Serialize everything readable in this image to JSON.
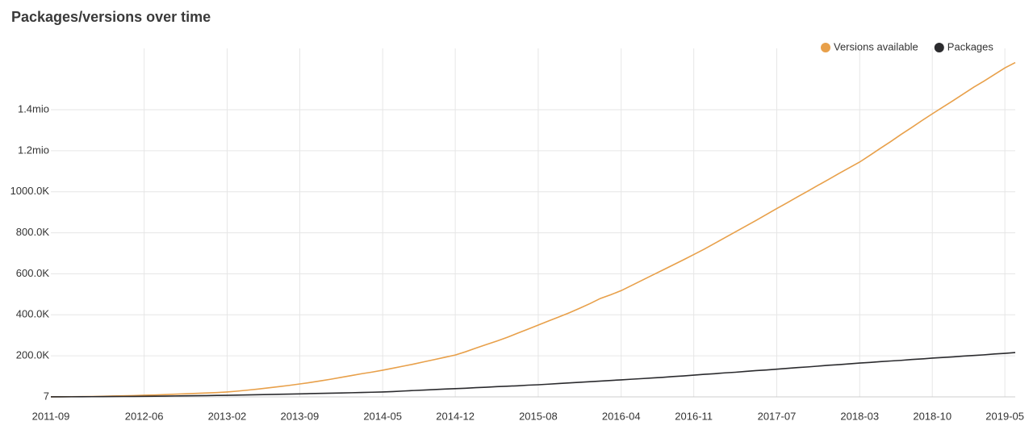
{
  "chart_data": {
    "type": "line",
    "title": "Packages/versions over time",
    "categories": [
      "2011-09",
      null,
      null,
      null,
      null,
      null,
      null,
      null,
      null,
      "2012-06",
      null,
      null,
      null,
      null,
      null,
      null,
      null,
      "2013-02",
      null,
      null,
      null,
      null,
      null,
      null,
      "2013-09",
      null,
      null,
      null,
      null,
      null,
      null,
      null,
      "2014-05",
      null,
      null,
      null,
      null,
      null,
      null,
      "2014-12",
      null,
      null,
      null,
      null,
      null,
      null,
      null,
      "2015-08",
      null,
      null,
      null,
      null,
      null,
      null,
      null,
      "2016-04",
      null,
      null,
      null,
      null,
      null,
      null,
      "2016-11",
      null,
      null,
      null,
      null,
      null,
      null,
      null,
      "2017-07",
      null,
      null,
      null,
      null,
      null,
      null,
      null,
      "2018-03",
      null,
      null,
      null,
      null,
      null,
      null,
      "2018-10",
      null,
      null,
      null,
      null,
      null,
      null,
      "2019-05",
      null
    ],
    "series": [
      {
        "name": "Versions available",
        "color": "#e8a04a",
        "values": [
          100,
          500,
          1000,
          1500,
          2000,
          3000,
          4000,
          5000,
          6000,
          8000,
          9000,
          11000,
          13000,
          15000,
          17000,
          19000,
          21000,
          24000,
          28000,
          33000,
          38000,
          44000,
          50000,
          56000,
          63000,
          70000,
          78000,
          86000,
          95000,
          104000,
          113000,
          121000,
          130000,
          140000,
          150000,
          160000,
          171000,
          182000,
          193000,
          204000,
          220000,
          238000,
          255000,
          272000,
          290000,
          310000,
          330000,
          350000,
          370000,
          390000,
          410000,
          432000,
          455000,
          480000,
          498000,
          518000,
          543000,
          568000,
          593000,
          618000,
          643000,
          668000,
          694000,
          720000,
          748000,
          776000,
          804000,
          832000,
          860000,
          889000,
          918000,
          946000,
          975000,
          1003000,
          1032000,
          1060000,
          1089000,
          1117000,
          1145000,
          1178000,
          1212000,
          1245000,
          1280000,
          1313000,
          1347000,
          1380000,
          1412000,
          1444000,
          1477000,
          1510000,
          1540000,
          1572000,
          1604000,
          1630000
        ]
      },
      {
        "name": "Packages",
        "color": "#2b2b2e",
        "values": [
          100,
          300,
          500,
          800,
          1000,
          1300,
          1600,
          2000,
          2400,
          2800,
          3300,
          3800,
          4400,
          5000,
          5600,
          6300,
          7000,
          7800,
          8700,
          9600,
          10600,
          11600,
          12600,
          13600,
          14700,
          15800,
          16900,
          18000,
          19100,
          20200,
          21400,
          22600,
          24000,
          26000,
          28500,
          31000,
          33000,
          35500,
          38000,
          40000,
          42000,
          45000,
          47000,
          50000,
          52000,
          54000,
          57000,
          59000,
          62000,
          65000,
          68000,
          71000,
          74000,
          77000,
          80000,
          83000,
          86000,
          89000,
          92000,
          95000,
          99000,
          102000,
          106000,
          110000,
          113000,
          117000,
          120000,
          124000,
          128000,
          131000,
          135000,
          139000,
          143000,
          146000,
          150000,
          154000,
          157000,
          161000,
          165000,
          168000,
          172000,
          175000,
          178000,
          182000,
          185000,
          189000,
          192000,
          195000,
          199000,
          202000,
          205000,
          209000,
          212000,
          216000
        ]
      }
    ],
    "ylim": [
      7,
      1640000
    ],
    "yticks": [
      7,
      {
        "value": 200000,
        "label": "200.0K"
      },
      {
        "value": 400000,
        "label": "400.0K"
      },
      {
        "value": 600000,
        "label": "600.0K"
      },
      {
        "value": 800000,
        "label": "800.0K"
      },
      {
        "value": 1000000,
        "label": "1000.0K"
      },
      {
        "value": 1200000,
        "label": "1.2mio"
      },
      {
        "value": 1400000,
        "label": "1.4mio"
      }
    ],
    "grid": true,
    "legend": "top-right"
  }
}
